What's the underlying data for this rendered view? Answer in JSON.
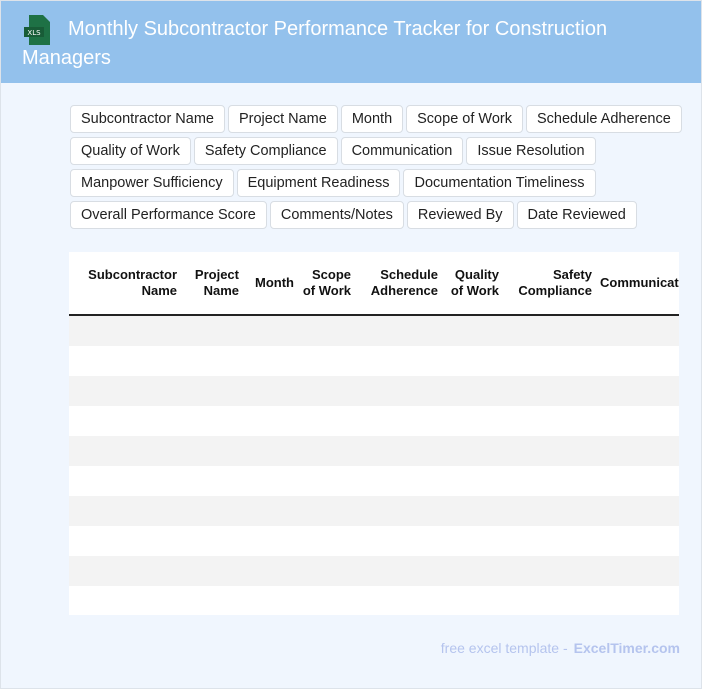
{
  "header": {
    "title": "Monthly Subcontractor Performance Tracker for Construction Managers",
    "logo_text": "XLS"
  },
  "chips": [
    "Subcontractor Name",
    "Project Name",
    "Month",
    "Scope of Work",
    "Schedule Adherence",
    "Quality of Work",
    "Safety Compliance",
    "Communication",
    "Issue Resolution",
    "Manpower Sufficiency",
    "Equipment Readiness",
    "Documentation Timeliness",
    "Overall Performance Score",
    "Comments/Notes",
    "Reviewed By",
    "Date Reviewed"
  ],
  "table": {
    "columns": [
      "Subcontractor Name",
      "Project Name",
      "Month",
      "Scope of Work",
      "Schedule Adherence",
      "Quality of Work",
      "Safety Compliance",
      "Communication"
    ],
    "row_count": 10
  },
  "footer": {
    "text": "free excel template -",
    "brand": "ExcelTimer.com"
  }
}
